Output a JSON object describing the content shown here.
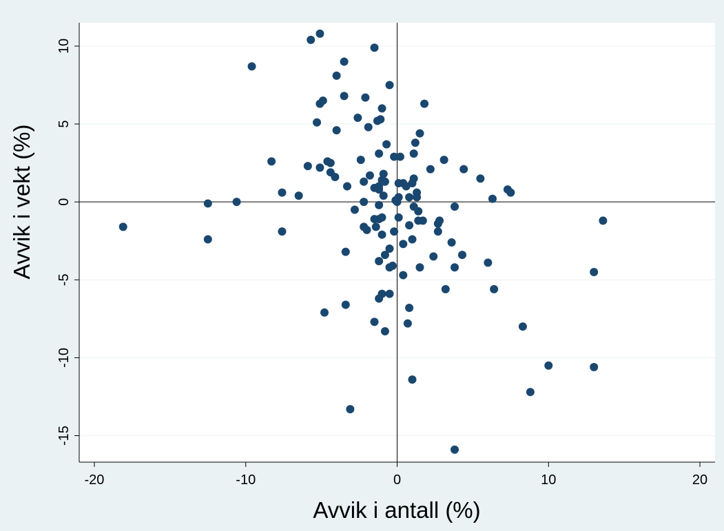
{
  "chart_data": {
    "type": "scatter",
    "title": "",
    "xlabel": "Avvik i antall (%)",
    "ylabel": "Avvik i vekt (%)",
    "xlim": [
      -21,
      21
    ],
    "ylim": [
      -16.7,
      11.5
    ],
    "xticks": [
      -20,
      -10,
      0,
      10,
      20
    ],
    "yticks": [
      -15,
      -10,
      -5,
      0,
      5,
      10
    ],
    "grid": "horizontal",
    "reference_lines": {
      "x": 0,
      "y": 0
    },
    "marker_color": "#1a476f",
    "background_color": "#eaf2f3",
    "plot_background_color": "#ffffff",
    "points": [
      [
        -5.1,
        10.8
      ],
      [
        -5.7,
        10.4
      ],
      [
        -1.5,
        9.9
      ],
      [
        -3.5,
        9.0
      ],
      [
        -9.6,
        8.7
      ],
      [
        -4.0,
        8.1
      ],
      [
        -0.5,
        7.5
      ],
      [
        -3.5,
        6.8
      ],
      [
        -2.1,
        6.7
      ],
      [
        -4.9,
        6.5
      ],
      [
        -5.1,
        6.3
      ],
      [
        1.8,
        6.3
      ],
      [
        -1.0,
        6.0
      ],
      [
        -2.6,
        5.4
      ],
      [
        -1.1,
        5.3
      ],
      [
        -1.3,
        5.2
      ],
      [
        -5.3,
        5.1
      ],
      [
        -1.9,
        4.8
      ],
      [
        -4.0,
        4.6
      ],
      [
        1.5,
        4.4
      ],
      [
        1.2,
        3.8
      ],
      [
        -0.7,
        3.7
      ],
      [
        -1.2,
        3.1
      ],
      [
        1.1,
        3.1
      ],
      [
        0.2,
        2.9
      ],
      [
        -0.2,
        2.9
      ],
      [
        -2.4,
        2.7
      ],
      [
        3.1,
        2.7
      ],
      [
        -8.3,
        2.6
      ],
      [
        -4.6,
        2.6
      ],
      [
        -4.4,
        2.5
      ],
      [
        -5.9,
        2.3
      ],
      [
        -5.1,
        2.2
      ],
      [
        2.2,
        2.1
      ],
      [
        4.4,
        2.1
      ],
      [
        -4.4,
        1.9
      ],
      [
        -0.9,
        1.8
      ],
      [
        -1.8,
        1.7
      ],
      [
        -4.1,
        1.6
      ],
      [
        1.1,
        1.5
      ],
      [
        5.5,
        1.5
      ],
      [
        -1.0,
        1.4
      ],
      [
        -0.8,
        1.3
      ],
      [
        -2.2,
        1.3
      ],
      [
        0.1,
        1.2
      ],
      [
        0.4,
        1.2
      ],
      [
        1.0,
        1.2
      ],
      [
        -1.2,
        1.0
      ],
      [
        -3.3,
        1.0
      ],
      [
        0.6,
        1.0
      ],
      [
        -1.5,
        0.9
      ],
      [
        -1.2,
        0.8
      ],
      [
        7.3,
        0.8
      ],
      [
        -7.6,
        0.6
      ],
      [
        1.3,
        0.6
      ],
      [
        7.5,
        0.6
      ],
      [
        -6.5,
        0.4
      ],
      [
        -0.9,
        0.4
      ],
      [
        0.1,
        0.3
      ],
      [
        0.8,
        0.3
      ],
      [
        1.3,
        0.3
      ],
      [
        6.3,
        0.2
      ],
      [
        -0.1,
        0.1
      ],
      [
        -10.6,
        0.0
      ],
      [
        -12.5,
        -0.1
      ],
      [
        -2.2,
        0.0
      ],
      [
        0.0,
        0.0
      ],
      [
        -1.2,
        -0.2
      ],
      [
        3.8,
        -0.3
      ],
      [
        1.1,
        -0.3
      ],
      [
        -2.8,
        -0.5
      ],
      [
        1.4,
        -0.6
      ],
      [
        -1.5,
        -1.1
      ],
      [
        0.1,
        -1.0
      ],
      [
        -1.0,
        -1.0
      ],
      [
        -1.2,
        -1.1
      ],
      [
        1.4,
        -1.2
      ],
      [
        1.7,
        -1.2
      ],
      [
        2.8,
        -1.2
      ],
      [
        13.6,
        -1.2
      ],
      [
        2.7,
        -1.4
      ],
      [
        -2.2,
        -1.6
      ],
      [
        -1.4,
        -1.6
      ],
      [
        -18.1,
        -1.6
      ],
      [
        0.8,
        -1.5
      ],
      [
        -2.0,
        -1.8
      ],
      [
        -7.6,
        -1.9
      ],
      [
        2.7,
        -1.9
      ],
      [
        -0.2,
        -1.9
      ],
      [
        -1.0,
        -2.1
      ],
      [
        -12.5,
        -2.4
      ],
      [
        1.0,
        -2.4
      ],
      [
        3.6,
        -2.6
      ],
      [
        0.4,
        -2.7
      ],
      [
        -0.5,
        -3.0
      ],
      [
        -3.4,
        -3.2
      ],
      [
        -0.8,
        -3.4
      ],
      [
        2.4,
        -3.5
      ],
      [
        4.3,
        -3.4
      ],
      [
        -1.2,
        -3.8
      ],
      [
        6.0,
        -3.9
      ],
      [
        -0.5,
        -4.2
      ],
      [
        1.5,
        -4.2
      ],
      [
        3.8,
        -4.2
      ],
      [
        -0.3,
        -4.1
      ],
      [
        13.0,
        -4.5
      ],
      [
        0.4,
        -4.7
      ],
      [
        3.2,
        -5.6
      ],
      [
        6.4,
        -5.6
      ],
      [
        -1.0,
        -5.9
      ],
      [
        -0.5,
        -5.9
      ],
      [
        -1.2,
        -6.2
      ],
      [
        -3.4,
        -6.6
      ],
      [
        0.8,
        -6.8
      ],
      [
        -4.8,
        -7.1
      ],
      [
        -1.5,
        -7.7
      ],
      [
        0.7,
        -7.8
      ],
      [
        8.3,
        -8.0
      ],
      [
        -0.8,
        -8.3
      ],
      [
        10.0,
        -10.5
      ],
      [
        13.0,
        -10.6
      ],
      [
        1.0,
        -11.4
      ],
      [
        8.8,
        -12.2
      ],
      [
        -3.1,
        -13.3
      ],
      [
        3.8,
        -15.9
      ]
    ]
  }
}
